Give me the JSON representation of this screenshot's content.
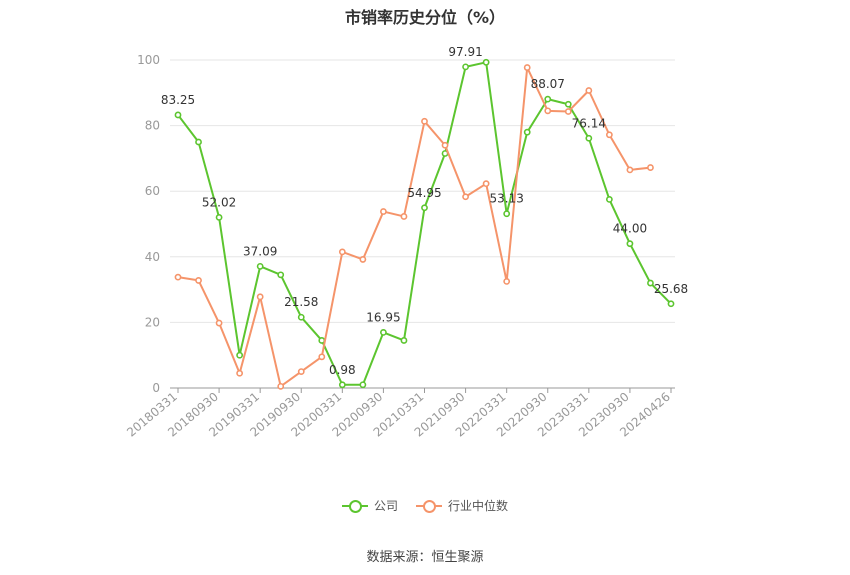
{
  "chart_data": {
    "type": "line",
    "title": "市销率历史分位（%）",
    "ylim": [
      0,
      100
    ],
    "yticks": [
      0,
      20,
      40,
      60,
      80,
      100
    ],
    "x": [
      "20180331",
      "20180630",
      "20180930",
      "20181231",
      "20190331",
      "20190630",
      "20190930",
      "20191231",
      "20200331",
      "20200630",
      "20200930",
      "20201231",
      "20210331",
      "20210630",
      "20210930",
      "20211231",
      "20220331",
      "20220630",
      "20220930",
      "20221231",
      "20230331",
      "20230630",
      "20230930",
      "20231231",
      "20240426"
    ],
    "xtick_labels": [
      "20180331",
      "20180930",
      "20190331",
      "20190930",
      "20200331",
      "20200930",
      "20210331",
      "20210930",
      "20220331",
      "20220930",
      "20230331",
      "20230930",
      "20240426"
    ],
    "xtick_indices": [
      0,
      2,
      4,
      6,
      8,
      10,
      12,
      14,
      16,
      18,
      20,
      22,
      24
    ],
    "series": [
      {
        "name": "公司",
        "color": "#5cc52f",
        "values": [
          83.25,
          75,
          52.02,
          10,
          37.09,
          34.5,
          21.58,
          14.5,
          0.98,
          1,
          16.95,
          14.5,
          54.95,
          71.5,
          97.91,
          99.3,
          53.13,
          78,
          88.07,
          86.5,
          76.14,
          57.5,
          44.0,
          32,
          25.68
        ],
        "labels": {
          "0": "83.25",
          "2": "52.02",
          "4": "37.09",
          "6": "21.58",
          "8": "0.98",
          "10": "16.95",
          "12": "54.95",
          "14": "97.91",
          "16": "53.13",
          "18": "88.07",
          "20": "76.14",
          "22": "44.00",
          "24": "25.68"
        }
      },
      {
        "name": "行业中位数",
        "color": "#f5946a",
        "values": [
          33.8,
          32.8,
          19.8,
          4.5,
          27.8,
          0.5,
          5,
          9.5,
          41.5,
          39.2,
          53.8,
          52.3,
          81.3,
          74,
          58.3,
          62.3,
          32.5,
          97.7,
          84.5,
          84.3,
          90.7,
          77.2,
          66.5,
          67.2,
          null
        ]
      }
    ],
    "grid": true,
    "legend_position": "bottom"
  },
  "legend": {
    "company": "公司",
    "industry": "行业中位数"
  },
  "source": "数据来源：恒生聚源"
}
